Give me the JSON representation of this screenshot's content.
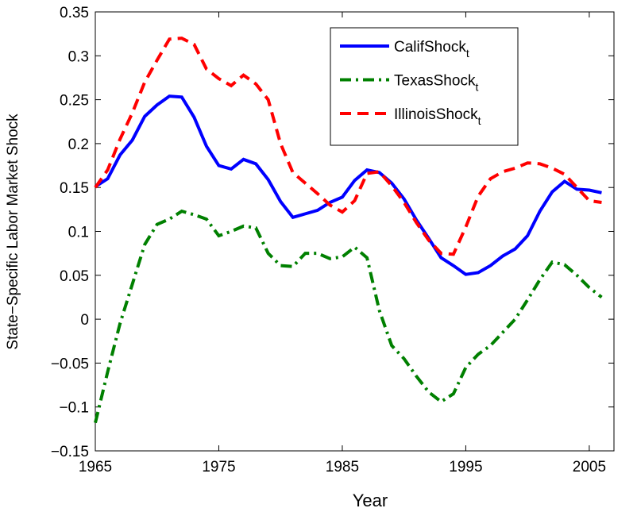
{
  "chart_data": {
    "type": "line",
    "xlabel": "Year",
    "ylabel": "State−Specific Labor Market Shock",
    "x": [
      1965,
      1966,
      1967,
      1968,
      1969,
      1970,
      1971,
      1972,
      1973,
      1974,
      1975,
      1976,
      1977,
      1978,
      1979,
      1980,
      1981,
      1982,
      1983,
      1984,
      1985,
      1986,
      1987,
      1988,
      1989,
      1990,
      1991,
      1992,
      1993,
      1994,
      1995,
      1996,
      1997,
      1998,
      1999,
      2000,
      2001,
      2002,
      2003,
      2004,
      2005,
      2006
    ],
    "series": [
      {
        "name": "CalifShock",
        "name_subscript": "t",
        "color": "#0000ff",
        "dash": "solid",
        "values": [
          0.151,
          0.16,
          0.187,
          0.204,
          0.231,
          0.244,
          0.254,
          0.253,
          0.23,
          0.197,
          0.175,
          0.171,
          0.182,
          0.177,
          0.159,
          0.134,
          0.116,
          0.12,
          0.124,
          0.133,
          0.139,
          0.158,
          0.17,
          0.167,
          0.155,
          0.137,
          0.113,
          0.092,
          0.07,
          0.061,
          0.051,
          0.053,
          0.061,
          0.072,
          0.08,
          0.095,
          0.123,
          0.145,
          0.157,
          0.148,
          0.147,
          0.144
        ]
      },
      {
        "name": "TexasShock",
        "name_subscript": "t",
        "color": "#008000",
        "dash": "dashdot",
        "values": [
          -0.118,
          -0.06,
          -0.005,
          0.04,
          0.085,
          0.108,
          0.114,
          0.123,
          0.119,
          0.114,
          0.095,
          0.1,
          0.106,
          0.104,
          0.075,
          0.061,
          0.06,
          0.075,
          0.075,
          0.069,
          0.071,
          0.082,
          0.07,
          0.01,
          -0.03,
          -0.045,
          -0.065,
          -0.083,
          -0.094,
          -0.085,
          -0.055,
          -0.04,
          -0.03,
          -0.015,
          0.0,
          0.022,
          0.045,
          0.065,
          0.062,
          0.05,
          0.036,
          0.025
        ]
      },
      {
        "name": "IllinoisShock",
        "name_subscript": "t",
        "color": "#ff0000",
        "dash": "dashed",
        "values": [
          0.15,
          0.17,
          0.205,
          0.235,
          0.27,
          0.295,
          0.319,
          0.32,
          0.313,
          0.285,
          0.274,
          0.266,
          0.278,
          0.268,
          0.25,
          0.2,
          0.167,
          0.155,
          0.143,
          0.13,
          0.122,
          0.135,
          0.166,
          0.168,
          0.152,
          0.133,
          0.11,
          0.09,
          0.075,
          0.074,
          0.105,
          0.14,
          0.16,
          0.168,
          0.172,
          0.178,
          0.177,
          0.172,
          0.165,
          0.15,
          0.135,
          0.133
        ]
      }
    ],
    "xlim": [
      1965,
      2007
    ],
    "xticks": [
      1965,
      1975,
      1985,
      1995,
      2005
    ],
    "ylim": [
      -0.15,
      0.35
    ],
    "yticks": [
      {
        "value": -0.15,
        "label": "−0.15"
      },
      {
        "value": -0.1,
        "label": "−0.1"
      },
      {
        "value": -0.05,
        "label": "−0.05"
      },
      0,
      0.05,
      0.1,
      0.15,
      0.2,
      0.25,
      0.3,
      0.35
    ],
    "grid": false,
    "legend": "top-right"
  }
}
